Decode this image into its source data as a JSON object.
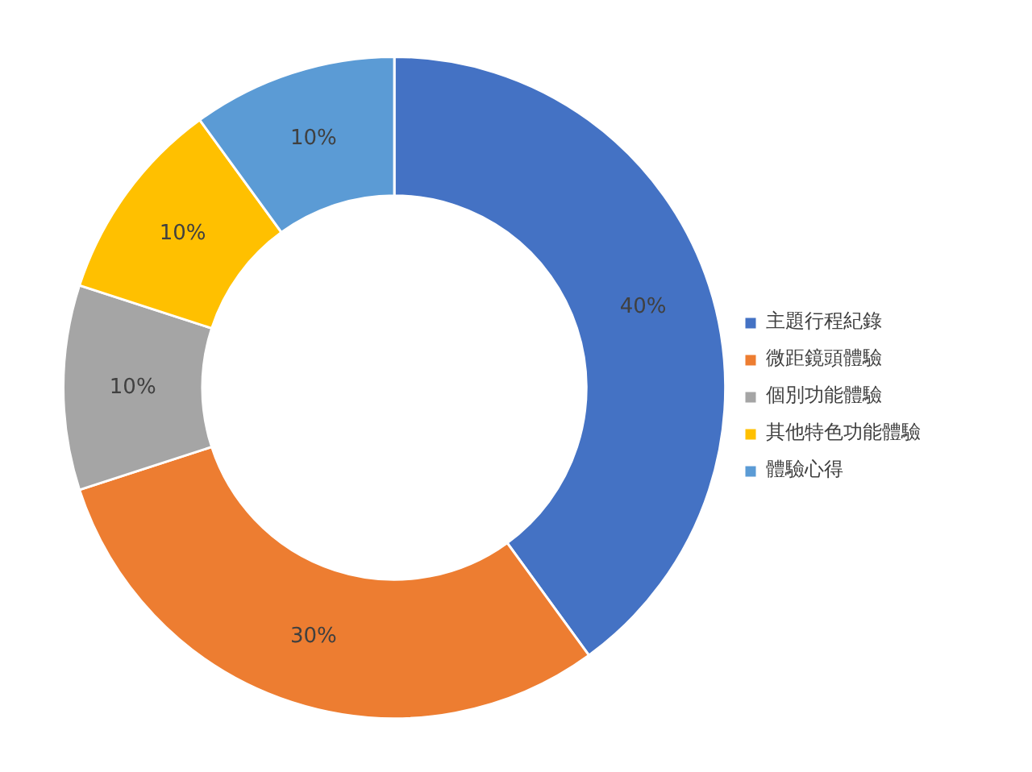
{
  "chart_data": {
    "type": "donut",
    "categories": [
      "主題行程紀錄",
      "微距鏡頭體驗",
      "個別功能體驗",
      "其他特色功能體驗",
      "體驗心得"
    ],
    "values": [
      40,
      30,
      10,
      10,
      10
    ],
    "colors": [
      "#4472c4",
      "#ed7d31",
      "#a5a5a5",
      "#ffc000",
      "#5b9bd5"
    ],
    "value_labels": [
      "40%",
      "30%",
      "10%",
      "10%",
      "10%"
    ],
    "legend": "right"
  }
}
